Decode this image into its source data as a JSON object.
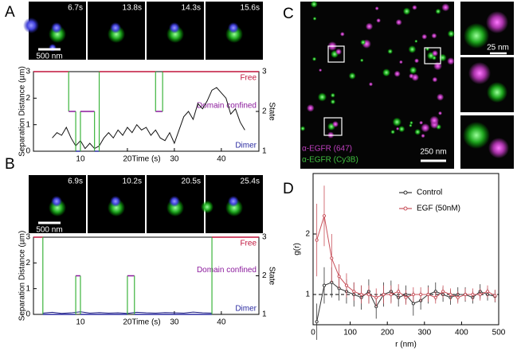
{
  "panels": {
    "A": {
      "label": "A",
      "frames": [
        "6.7s",
        "13.8s",
        "14.3s",
        "15.6s"
      ],
      "scale_bar": "500 nm"
    },
    "B": {
      "label": "B",
      "frames": [
        "6.9s",
        "10.2s",
        "20.5s",
        "25.4s"
      ],
      "scale_bar": "500 nm"
    },
    "C": {
      "label": "C",
      "scale_bar": "250 nm",
      "inset_scale_bar": "25 nm",
      "channels": [
        {
          "name": "α-EGFR (647)",
          "color": "#c040c0"
        },
        {
          "name": "α-EGFR (Cy3B)",
          "color": "#40c040"
        }
      ]
    },
    "D": {
      "label": "D"
    }
  },
  "chart_data": [
    {
      "type": "line",
      "xlabel": "Time (s)",
      "ylabel": "Separation Distance (µm)",
      "y2label": "State",
      "xlim": [
        0,
        48
      ],
      "xticks": [
        10,
        20,
        30,
        40
      ],
      "ylim": [
        0,
        3
      ],
      "yticks": [
        0,
        1,
        2,
        3
      ],
      "y2lim": [
        1,
        3
      ],
      "y2ticks": [
        1,
        2,
        3
      ],
      "state_labels": [
        "Dimer",
        "Domain confined",
        "Free"
      ],
      "level_colors": [
        "#2a2aa0",
        "#8b1a9c",
        "#c0143c"
      ],
      "series": [
        {
          "name": "Separation",
          "color": "#111111",
          "x": [
            4,
            5,
            6,
            7,
            8,
            9,
            10,
            11,
            12,
            13,
            14,
            15,
            16,
            17,
            18,
            19,
            20,
            21,
            22,
            23,
            24,
            25,
            26,
            27,
            28,
            29,
            30,
            31,
            32,
            33,
            34,
            35,
            36,
            37,
            38,
            39,
            40,
            41,
            42,
            43,
            44,
            45
          ],
          "values": [
            0.5,
            0.7,
            0.6,
            0.9,
            0.5,
            0.2,
            0.4,
            0.1,
            0.3,
            0.1,
            0.2,
            0.5,
            0.7,
            0.5,
            0.8,
            0.6,
            0.9,
            0.7,
            1.0,
            0.8,
            0.9,
            0.6,
            0.8,
            0.5,
            0.4,
            0.7,
            0.3,
            0.8,
            1.3,
            1.5,
            1.2,
            1.8,
            1.6,
            1.9,
            2.3,
            2.4,
            2.2,
            2.0,
            1.4,
            1.6,
            1.1,
            0.8
          ]
        },
        {
          "name": "State",
          "axis": "y2",
          "drawstyle": "steps-post",
          "color": "#3cb43c",
          "x": [
            0,
            7.5,
            9,
            10,
            13,
            14,
            26,
            27.5
          ],
          "values": [
            3,
            2,
            1,
            2,
            1,
            3,
            2,
            3
          ]
        }
      ]
    },
    {
      "type": "line",
      "xlabel": "Time (s)",
      "ylabel": "Separation Distance (µm)",
      "y2label": "State",
      "xlim": [
        0,
        48
      ],
      "xticks": [
        10,
        20,
        30,
        40
      ],
      "ylim": [
        0,
        3
      ],
      "yticks": [
        0,
        1,
        2,
        3
      ],
      "y2lim": [
        1,
        3
      ],
      "y2ticks": [
        1,
        2,
        3
      ],
      "state_labels": [
        "Dimer",
        "Domain confined",
        "Free"
      ],
      "level_colors": [
        "#2a2aa0",
        "#8b1a9c",
        "#c0143c"
      ],
      "series": [
        {
          "name": "Separation",
          "color": "#1a1a80",
          "x": [
            2,
            4,
            6,
            8,
            10,
            12,
            14,
            16,
            18,
            20,
            22,
            24,
            26,
            28,
            30,
            32,
            34,
            36,
            38
          ],
          "values": [
            0.05,
            0.08,
            0.04,
            0.06,
            0.1,
            0.05,
            0.07,
            0.05,
            0.06,
            0.04,
            0.08,
            0.06,
            0.05,
            0.07,
            0.06,
            0.05,
            0.09,
            0.06,
            0.05
          ]
        },
        {
          "name": "State",
          "axis": "y2",
          "drawstyle": "steps-post",
          "color": "#3cb43c",
          "x": [
            0,
            2,
            9,
            10,
            20,
            21.5,
            38
          ],
          "values": [
            3,
            1,
            2,
            1,
            2,
            1,
            3
          ]
        }
      ]
    },
    {
      "type": "line",
      "xlabel": "r (nm)",
      "ylabel": "g(r)",
      "xlim": [
        0,
        500
      ],
      "xticks": [
        0,
        100,
        200,
        300,
        400,
        500
      ],
      "ylim": [
        0.5,
        3
      ],
      "yticks": [
        1,
        2
      ],
      "reference_line": 1,
      "legend": "upper right",
      "x": [
        10,
        30,
        50,
        70,
        90,
        110,
        130,
        150,
        170,
        190,
        210,
        230,
        250,
        270,
        290,
        310,
        330,
        350,
        370,
        390,
        410,
        430,
        450,
        470,
        490
      ],
      "series": [
        {
          "name": "Control",
          "color": "#333333",
          "values": [
            0.55,
            1.15,
            1.2,
            1.1,
            1.05,
            1.0,
            0.95,
            1.05,
            0.8,
            1.0,
            1.05,
            0.95,
            1.0,
            0.85,
            0.9,
            1.0,
            1.05,
            1.0,
            0.95,
            1.0,
            1.0,
            0.95,
            1.05,
            1.0,
            0.97
          ],
          "errors": [
            0.3,
            0.3,
            0.25,
            0.2,
            0.2,
            0.2,
            0.2,
            0.2,
            0.2,
            0.2,
            0.18,
            0.15,
            0.15,
            0.2,
            0.15,
            0.15,
            0.15,
            0.12,
            0.12,
            0.12,
            0.12,
            0.1,
            0.12,
            0.1,
            0.1
          ]
        },
        {
          "name": "EGF (50nM)",
          "color": "#c8505a",
          "values": [
            1.9,
            2.3,
            1.6,
            1.3,
            1.15,
            1.05,
            1.0,
            1.0,
            0.95,
            1.0,
            1.0,
            1.05,
            0.95,
            1.0,
            1.0,
            1.0,
            0.95,
            1.05,
            1.0,
            0.95,
            1.0,
            1.0,
            1.0,
            1.05,
            0.98
          ],
          "errors": [
            0.6,
            0.5,
            0.4,
            0.2,
            0.2,
            0.15,
            0.15,
            0.15,
            0.15,
            0.15,
            0.15,
            0.12,
            0.12,
            0.12,
            0.12,
            0.12,
            0.1,
            0.1,
            0.1,
            0.1,
            0.1,
            0.1,
            0.1,
            0.1,
            0.1
          ]
        }
      ]
    }
  ]
}
